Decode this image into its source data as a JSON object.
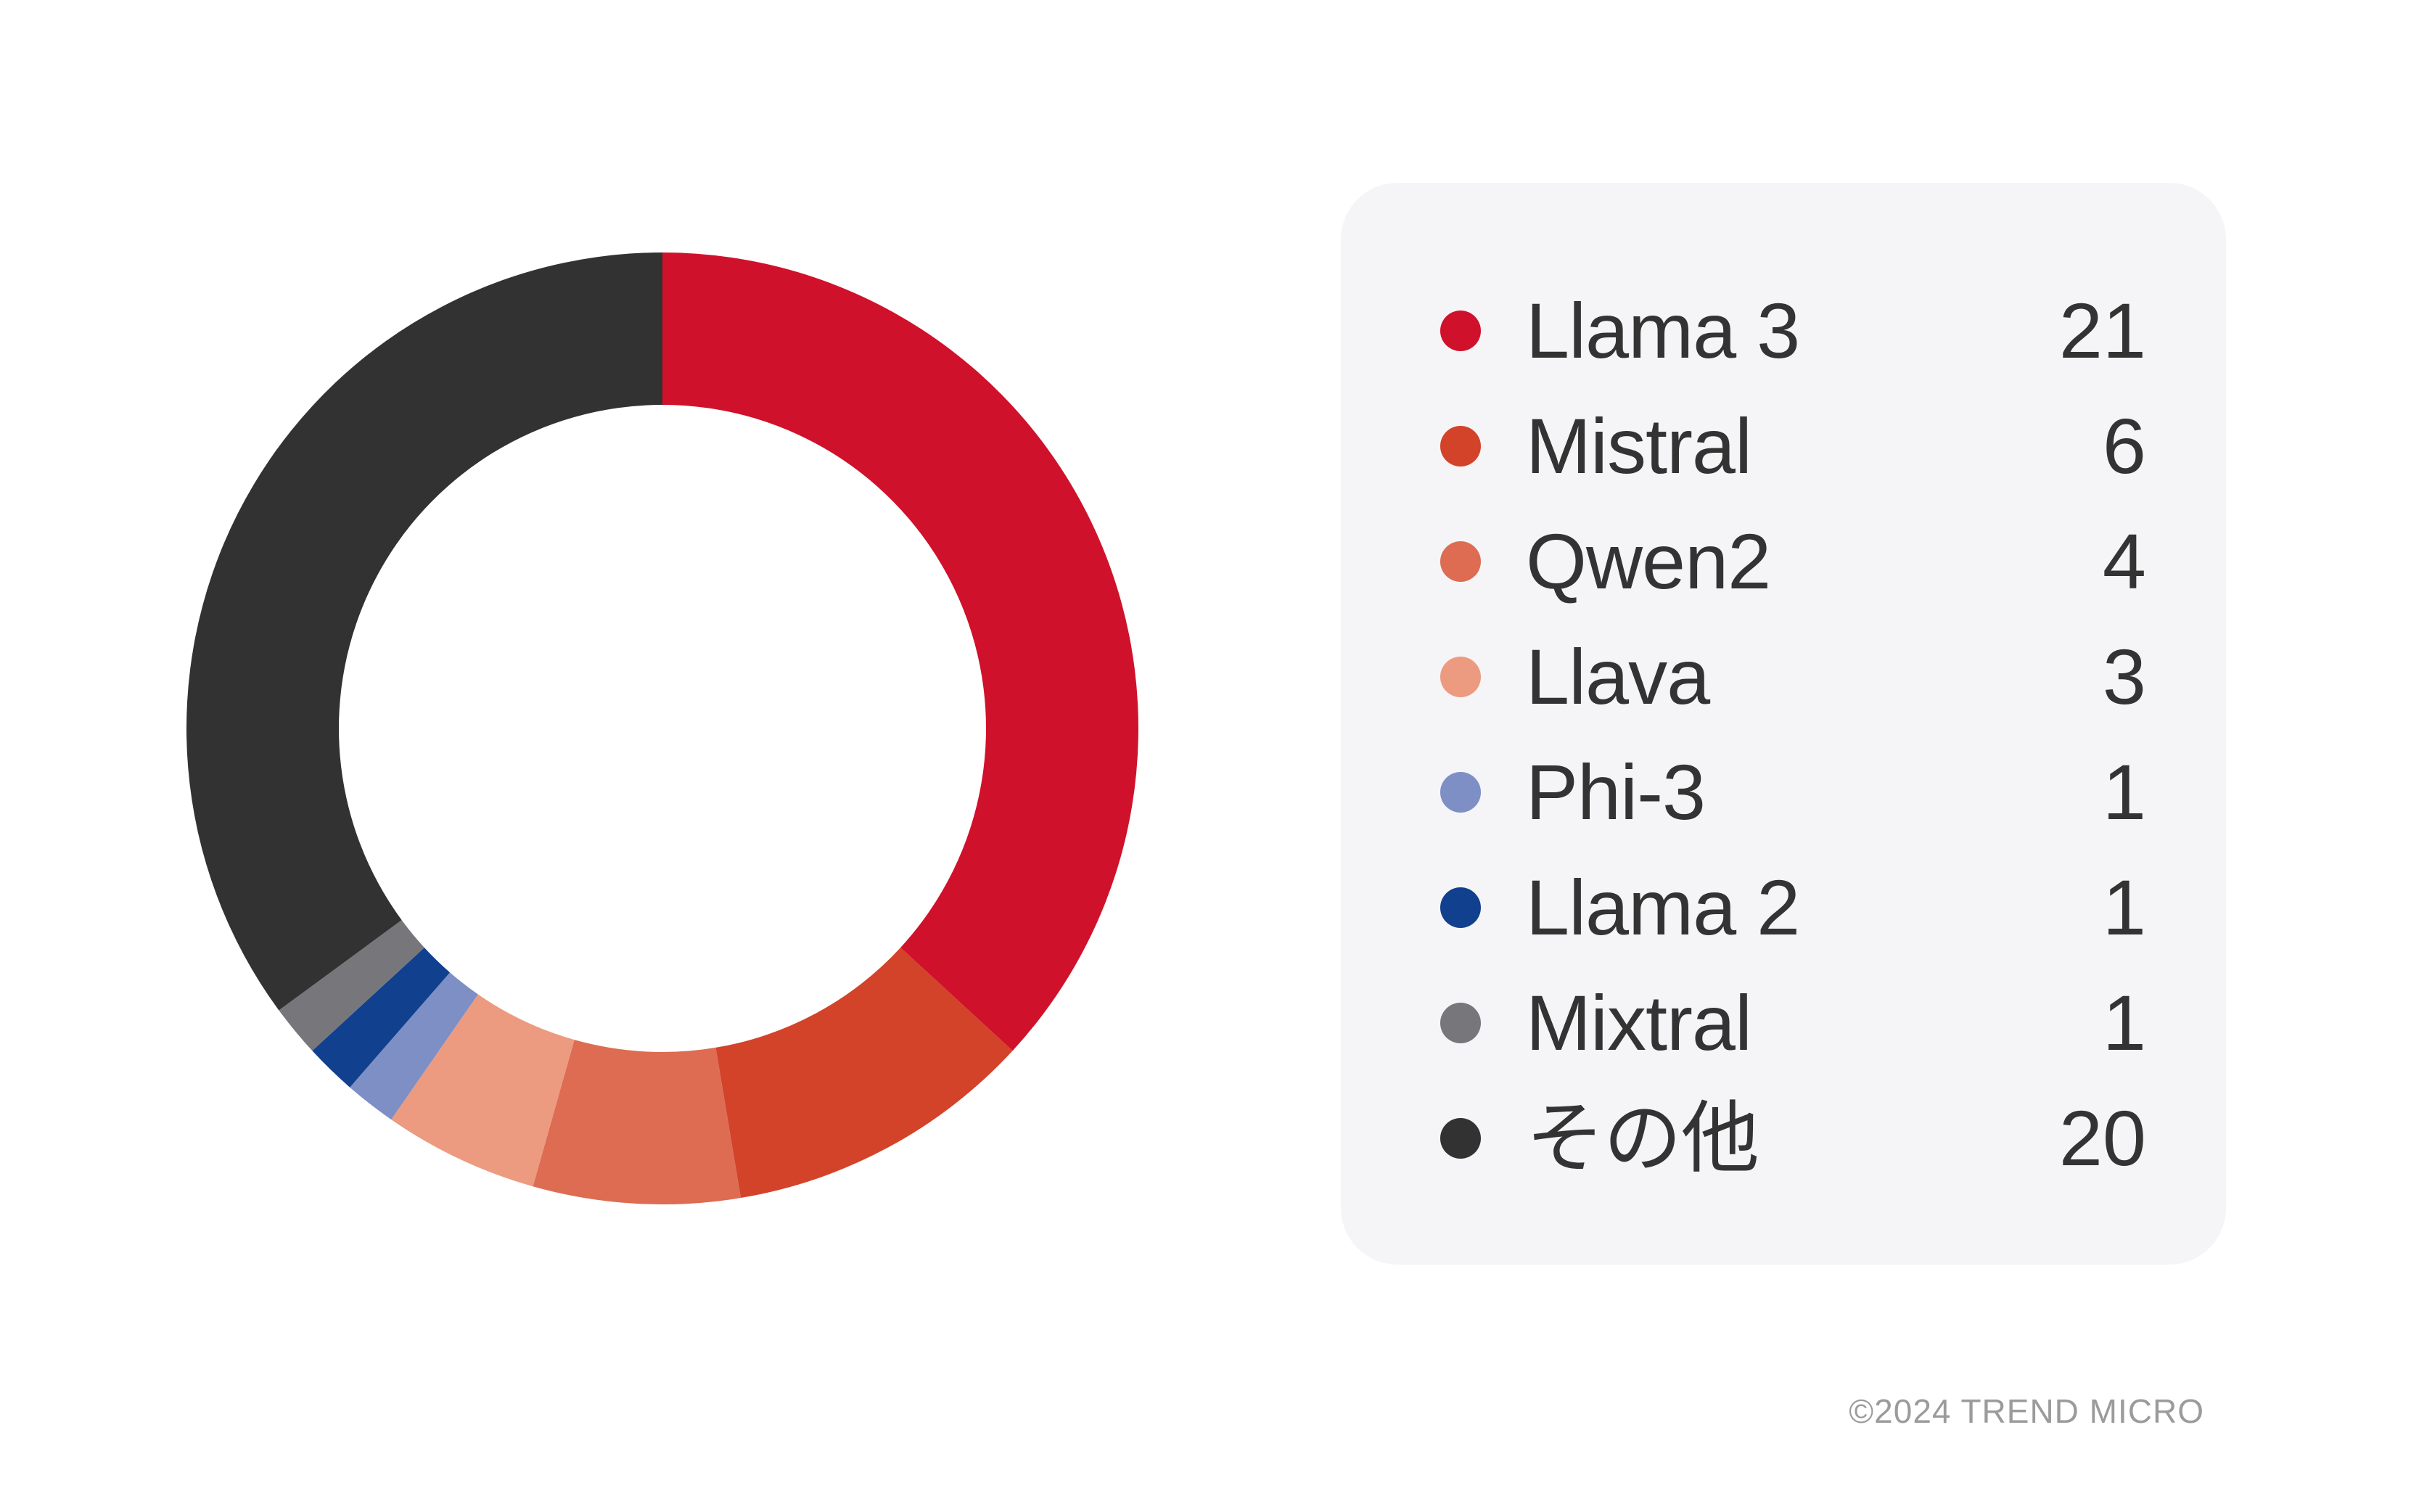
{
  "chart_data": {
    "type": "pie",
    "variant": "donut",
    "direction": "clockwise",
    "start_angle_deg": 0,
    "donut_hole_ratio": 0.68,
    "legend_position": "right",
    "total": 57,
    "series": [
      {
        "name": "Llama 3",
        "value": 21,
        "color": "#d0112b"
      },
      {
        "name": "Mistral",
        "value": 6,
        "color": "#d2432a"
      },
      {
        "name": "Qwen2",
        "value": 4,
        "color": "#dd6c52"
      },
      {
        "name": "Llava",
        "value": 3,
        "color": "#ec9b80"
      },
      {
        "name": "Phi-3",
        "value": 1,
        "color": "#7e8fc6"
      },
      {
        "name": "Llama 2",
        "value": 1,
        "color": "#10408e"
      },
      {
        "name": "Mixtral",
        "value": 1,
        "color": "#77777b"
      },
      {
        "name": "その他",
        "value": 20,
        "color": "#323232"
      }
    ]
  },
  "legend": {
    "panel_color": "#f5f5f7",
    "text_color": "#333333"
  },
  "footer": {
    "copyright": "©2024 TREND MICRO",
    "color": "#9b9b9b"
  }
}
